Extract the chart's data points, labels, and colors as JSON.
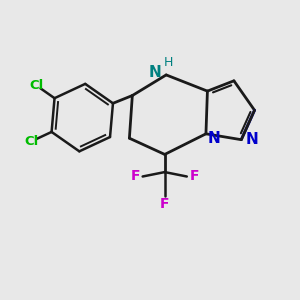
{
  "bg_color": "#e8e8e8",
  "bond_color": "#1a1a1a",
  "N_color": "#0000cc",
  "NH_color": "#008080",
  "H_color": "#008080",
  "Cl_color": "#00bb00",
  "F_color": "#cc00cc",
  "figsize": [
    3.0,
    3.0
  ],
  "dpi": 100,
  "xlim": [
    0,
    10
  ],
  "ylim": [
    0,
    10
  ],
  "lw_main": 2.0,
  "lw_ring": 1.8,
  "lw_double_inner": 1.5
}
